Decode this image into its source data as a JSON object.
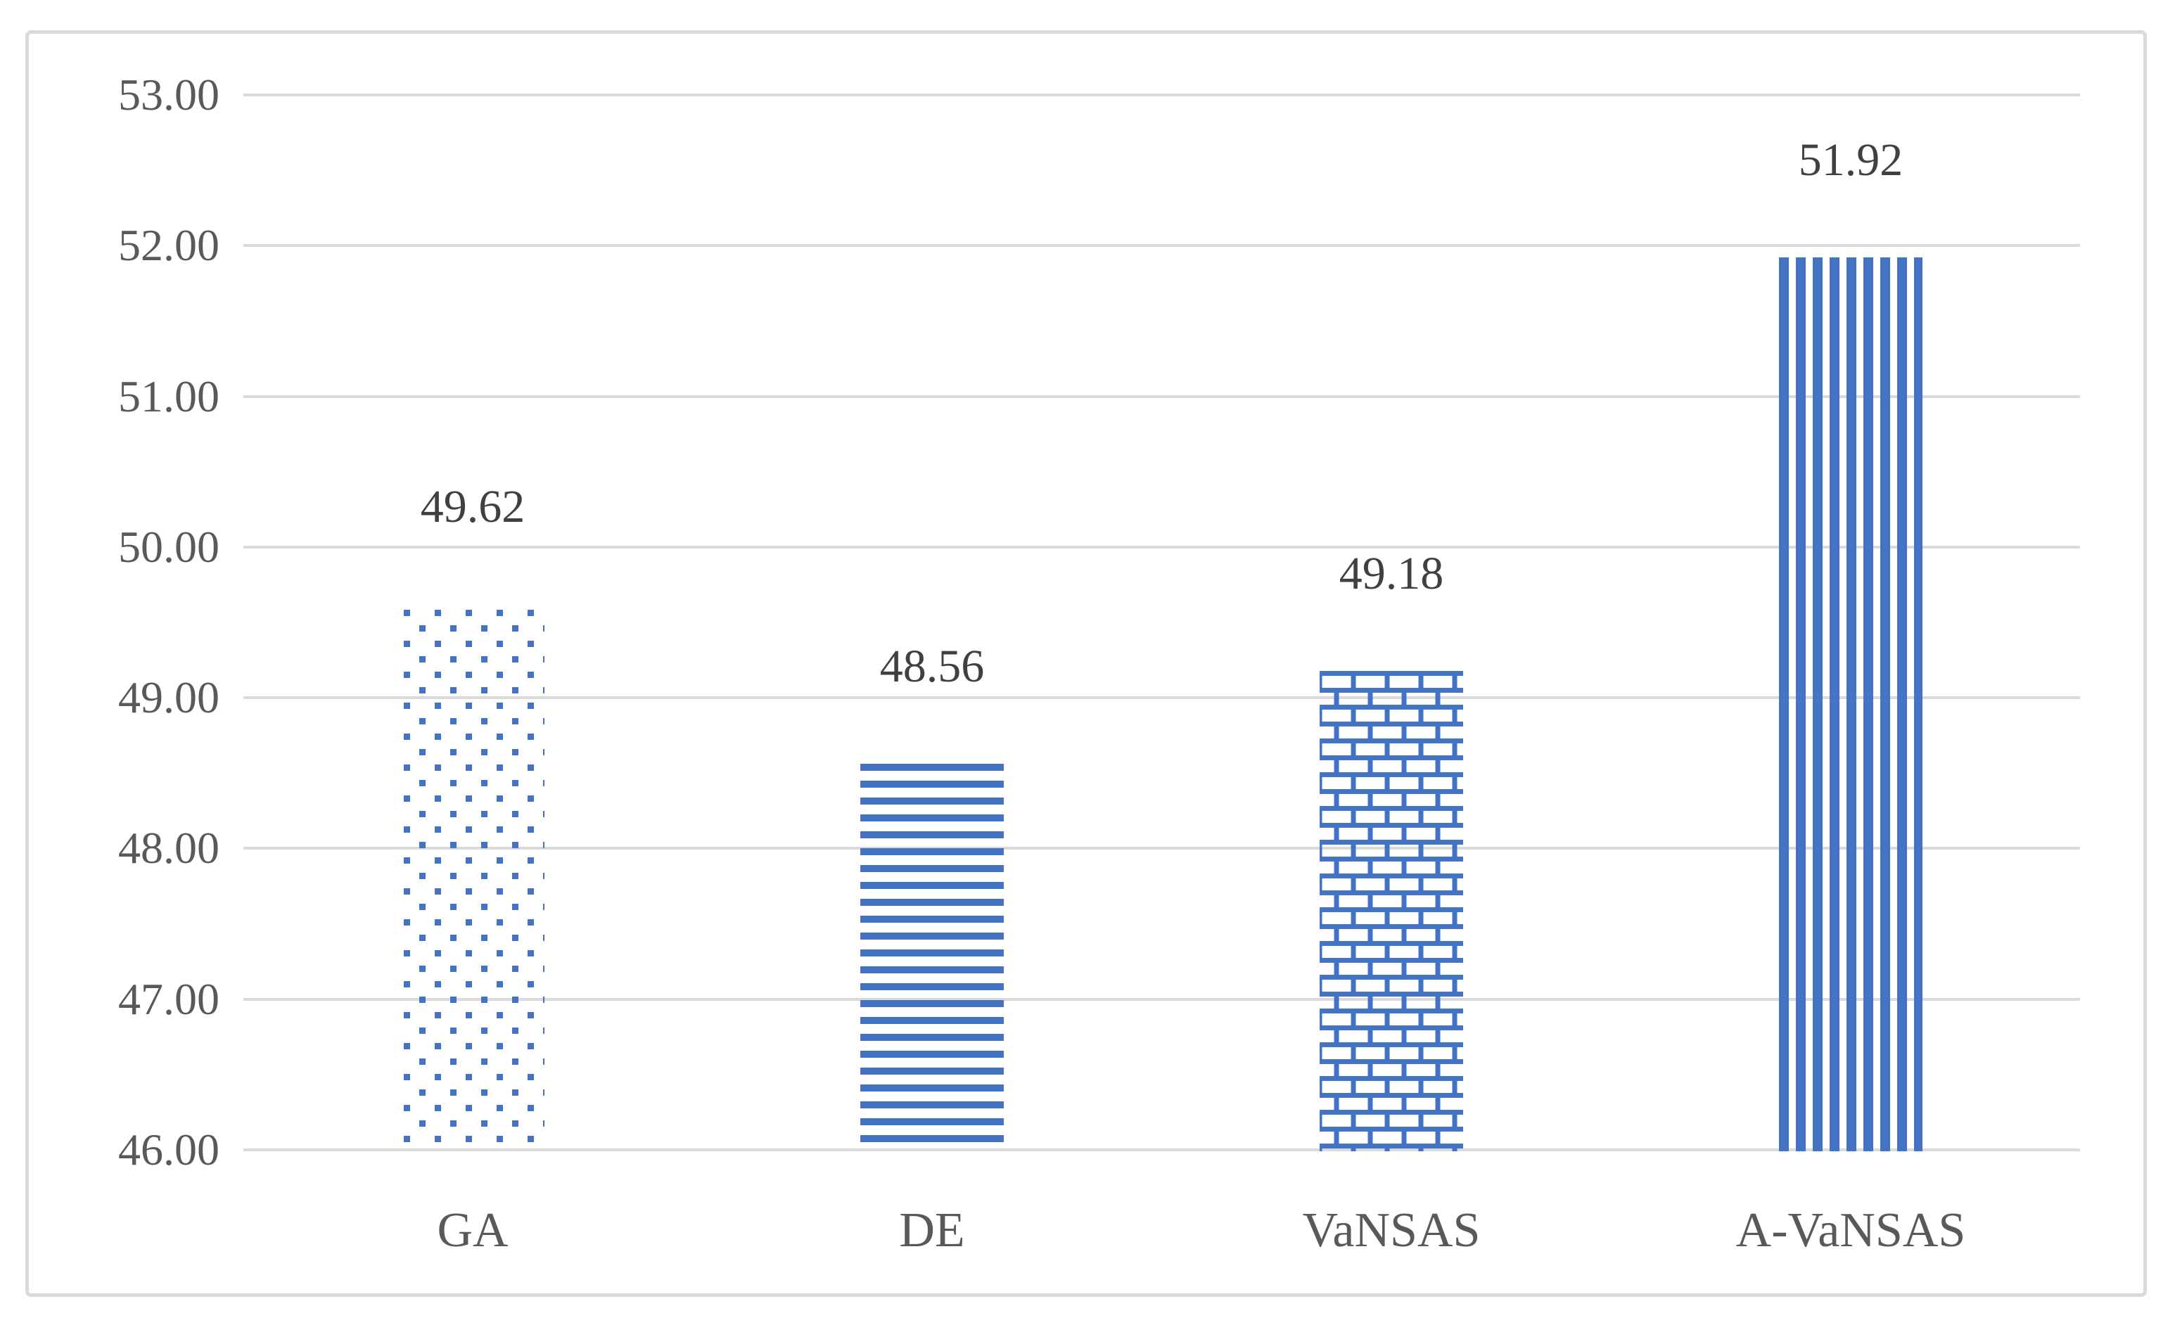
{
  "chart_data": {
    "type": "bar",
    "title": "",
    "xlabel": "",
    "ylabel": "",
    "categories": [
      "GA",
      "DE",
      "VaNSAS",
      "A-VaNSAS"
    ],
    "values": [
      49.62,
      48.56,
      49.18,
      51.92
    ],
    "data_labels": [
      "49.62",
      "48.56",
      "49.18",
      "51.92"
    ],
    "patterns": [
      "dots",
      "horizontal-lines",
      "bricks",
      "vertical-lines"
    ],
    "bar_color": "#4472C4",
    "ylim": [
      46,
      53
    ],
    "ytick_values": [
      53,
      52,
      51,
      50,
      49,
      48,
      47,
      46
    ],
    "ytick_labels": [
      "53.00",
      "52.00",
      "51.00",
      "50.00",
      "49.00",
      "48.00",
      "47.00",
      "46.00"
    ],
    "grid": "horizontal",
    "legend": "none",
    "gridline_color": "#D9D9D9",
    "text_color": "#595959",
    "frame_color": "#D9D9D9"
  }
}
